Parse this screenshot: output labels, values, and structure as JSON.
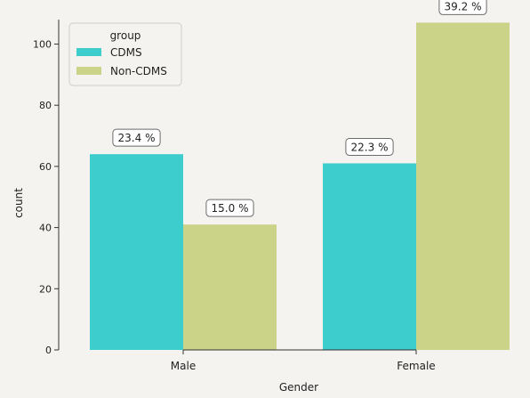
{
  "chart_data": {
    "type": "bar",
    "categories": [
      "Male",
      "Female"
    ],
    "series": [
      {
        "name": "CDMS",
        "values": [
          64,
          61
        ],
        "labels": [
          "23.4 %",
          "22.3 %"
        ]
      },
      {
        "name": "Non-CDMS",
        "values": [
          41,
          107
        ],
        "labels": [
          "15.0 %",
          "39.2 %"
        ]
      }
    ],
    "xlabel": "Gender",
    "ylabel": "count",
    "ylim": [
      0,
      108
    ],
    "yticks": [
      0,
      20,
      40,
      60,
      80,
      100
    ],
    "legend": {
      "title": "group",
      "position": "top-left"
    },
    "grid": false,
    "colors": {
      "CDMS": "#3ecdcd",
      "Non-CDMS": "#cbd389",
      "background": "#f5f3f0"
    }
  }
}
